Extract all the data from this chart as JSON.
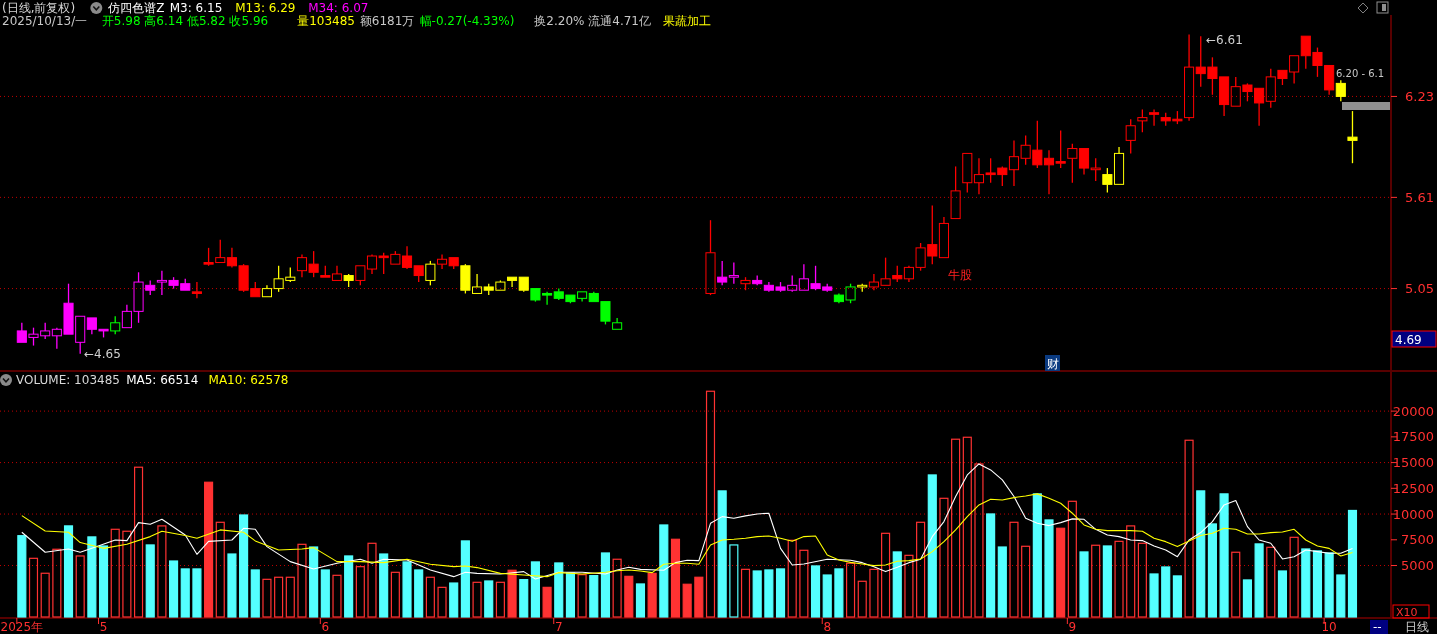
{
  "chart_data": [
    {
      "type": "candlestick",
      "title": "(日线,前复权)",
      "categories": [
        null,
        null,
        null,
        null,
        null,
        null,
        null,
        null,
        null,
        null,
        null,
        null,
        null,
        null,
        null,
        null,
        null,
        null,
        null,
        null,
        null,
        null,
        null,
        null,
        null,
        null,
        null,
        null,
        null,
        null,
        null,
        null,
        null,
        null,
        null,
        null,
        null,
        null,
        null,
        null,
        null,
        null,
        null,
        null,
        null,
        null,
        null,
        null,
        null,
        null,
        null,
        null,
        null,
        null,
        null,
        null,
        null,
        null,
        null,
        null,
        null,
        null,
        null,
        null,
        null,
        null,
        null,
        null,
        null,
        null,
        null,
        null,
        null,
        null,
        null,
        null,
        null,
        null,
        null,
        null,
        null,
        null,
        null,
        null,
        null,
        null,
        null,
        null,
        null,
        null,
        null,
        null,
        null,
        null,
        null,
        null,
        null,
        null,
        null,
        null,
        null,
        null,
        null,
        null,
        null,
        null,
        null,
        null,
        null,
        null,
        null,
        null,
        null,
        null,
        null
      ],
      "ohlc": [
        [
          4.79,
          4.84,
          4.72,
          4.72
        ],
        [
          4.75,
          4.81,
          4.7,
          4.77
        ],
        [
          4.76,
          4.84,
          4.74,
          4.79
        ],
        [
          4.76,
          4.81,
          4.68,
          4.8
        ],
        [
          4.96,
          5.08,
          4.77,
          4.77
        ],
        [
          4.72,
          4.88,
          4.65,
          4.88
        ],
        [
          4.87,
          4.87,
          4.77,
          4.8
        ],
        [
          4.8,
          4.8,
          4.75,
          4.79
        ],
        [
          4.79,
          4.88,
          4.77,
          4.84
        ],
        [
          4.81,
          4.95,
          4.81,
          4.91
        ],
        [
          4.91,
          5.15,
          4.84,
          5.09
        ],
        [
          5.07,
          5.1,
          5.01,
          5.04
        ],
        [
          5.09,
          5.16,
          5.01,
          5.1
        ],
        [
          5.1,
          5.12,
          5.05,
          5.07
        ],
        [
          5.08,
          5.11,
          5.04,
          5.04
        ],
        [
          5.03,
          5.09,
          4.99,
          5.02
        ],
        [
          5.21,
          5.3,
          5.19,
          5.2
        ],
        [
          5.21,
          5.35,
          5.21,
          5.24
        ],
        [
          5.24,
          5.3,
          5.18,
          5.19
        ],
        [
          5.19,
          5.2,
          5.03,
          5.04
        ],
        [
          5.05,
          5.09,
          5.0,
          5.0
        ],
        [
          5.0,
          5.07,
          5.0,
          5.05
        ],
        [
          5.05,
          5.19,
          5.03,
          5.11
        ],
        [
          5.1,
          5.18,
          5.09,
          5.12
        ],
        [
          5.16,
          5.26,
          5.12,
          5.24
        ],
        [
          5.2,
          5.28,
          5.12,
          5.15
        ],
        [
          5.13,
          5.19,
          5.12,
          5.12
        ],
        [
          5.1,
          5.19,
          5.1,
          5.14
        ],
        [
          5.13,
          5.14,
          5.06,
          5.1
        ],
        [
          5.1,
          5.19,
          5.07,
          5.19
        ],
        [
          5.17,
          5.26,
          5.14,
          5.25
        ],
        [
          5.25,
          5.27,
          5.14,
          5.24
        ],
        [
          5.2,
          5.28,
          5.2,
          5.26
        ],
        [
          5.25,
          5.31,
          5.17,
          5.18
        ],
        [
          5.19,
          5.19,
          5.09,
          5.13
        ],
        [
          5.1,
          5.22,
          5.07,
          5.2
        ],
        [
          5.2,
          5.26,
          5.17,
          5.23
        ],
        [
          5.24,
          5.24,
          5.17,
          5.19
        ],
        [
          5.19,
          5.2,
          5.02,
          5.04
        ],
        [
          5.02,
          5.14,
          5.02,
          5.06
        ],
        [
          5.06,
          5.08,
          5.01,
          5.04
        ],
        [
          5.04,
          5.1,
          5.04,
          5.09
        ],
        [
          5.12,
          5.12,
          5.06,
          5.1
        ],
        [
          5.12,
          5.12,
          5.03,
          5.04
        ],
        [
          5.05,
          5.05,
          4.97,
          4.98
        ],
        [
          5.02,
          5.03,
          4.95,
          5.01
        ],
        [
          5.03,
          5.05,
          4.98,
          4.99
        ],
        [
          5.01,
          5.01,
          4.96,
          4.97
        ],
        [
          4.99,
          5.03,
          4.97,
          5.03
        ],
        [
          5.02,
          5.03,
          4.97,
          4.97
        ],
        [
          4.97,
          4.97,
          4.83,
          4.85
        ],
        [
          4.8,
          4.87,
          4.8,
          4.84
        ],
        null,
        null,
        null,
        null,
        null,
        null,
        null,
        [
          5.02,
          5.47,
          5.01,
          5.27
        ],
        [
          5.12,
          5.22,
          5.07,
          5.09
        ],
        [
          5.12,
          5.21,
          5.08,
          5.13
        ],
        [
          5.08,
          5.12,
          5.04,
          5.1
        ],
        [
          5.1,
          5.13,
          5.07,
          5.08
        ],
        [
          5.07,
          5.09,
          5.03,
          5.04
        ],
        [
          5.06,
          5.09,
          5.03,
          5.04
        ],
        [
          5.04,
          5.13,
          5.03,
          5.07
        ],
        [
          5.04,
          5.2,
          5.04,
          5.11
        ],
        [
          5.08,
          5.19,
          5.04,
          5.05
        ],
        [
          5.06,
          5.08,
          5.03,
          5.04
        ],
        [
          5.01,
          5.02,
          4.96,
          4.97
        ],
        [
          4.98,
          5.08,
          4.96,
          5.06
        ],
        [
          5.06,
          5.08,
          5.03,
          5.07
        ],
        [
          5.06,
          5.14,
          5.04,
          5.09
        ],
        [
          5.07,
          5.24,
          5.07,
          5.11
        ],
        [
          5.13,
          5.19,
          5.09,
          5.11
        ],
        [
          5.11,
          5.19,
          5.09,
          5.18
        ],
        [
          5.18,
          5.33,
          5.16,
          5.3
        ],
        [
          5.32,
          5.56,
          5.2,
          5.25
        ],
        [
          5.24,
          5.49,
          5.24,
          5.45
        ],
        [
          5.48,
          5.8,
          5.48,
          5.65
        ],
        [
          5.7,
          5.88,
          5.64,
          5.88
        ],
        [
          5.7,
          5.85,
          5.63,
          5.75
        ],
        [
          5.76,
          5.85,
          5.7,
          5.75
        ],
        [
          5.79,
          5.8,
          5.68,
          5.75
        ],
        [
          5.78,
          5.96,
          5.68,
          5.86
        ],
        [
          5.85,
          5.99,
          5.81,
          5.93
        ],
        [
          5.9,
          6.08,
          5.79,
          5.81
        ],
        [
          5.85,
          5.9,
          5.63,
          5.81
        ],
        [
          5.83,
          6.02,
          5.79,
          5.82
        ],
        [
          5.85,
          5.94,
          5.7,
          5.91
        ],
        [
          5.91,
          5.91,
          5.75,
          5.79
        ],
        [
          5.78,
          5.85,
          5.71,
          5.79
        ],
        [
          5.75,
          5.79,
          5.64,
          5.69
        ],
        [
          5.69,
          5.92,
          5.69,
          5.88
        ],
        [
          5.96,
          6.09,
          5.88,
          6.05
        ],
        [
          6.08,
          6.15,
          6.01,
          6.1
        ],
        [
          6.13,
          6.15,
          6.05,
          6.12
        ],
        [
          6.1,
          6.13,
          6.05,
          6.08
        ],
        [
          6.09,
          6.14,
          6.06,
          6.08
        ],
        [
          6.1,
          6.61,
          6.08,
          6.41
        ],
        [
          6.41,
          6.6,
          6.29,
          6.37
        ],
        [
          6.41,
          6.47,
          6.24,
          6.34
        ],
        [
          6.35,
          6.35,
          6.11,
          6.18
        ],
        [
          6.17,
          6.35,
          6.17,
          6.29
        ],
        [
          6.3,
          6.31,
          6.2,
          6.26
        ],
        [
          6.28,
          6.28,
          6.05,
          6.19
        ],
        [
          6.2,
          6.4,
          6.16,
          6.35
        ],
        [
          6.39,
          6.39,
          6.3,
          6.34
        ],
        [
          6.38,
          6.48,
          6.31,
          6.48
        ],
        [
          6.6,
          6.6,
          6.4,
          6.48
        ],
        [
          6.5,
          6.53,
          6.35,
          6.42
        ],
        [
          6.42,
          6.42,
          6.24,
          6.27
        ],
        [
          6.31,
          6.33,
          6.2,
          6.23
        ],
        [
          5.98,
          6.14,
          5.82,
          5.96
        ]
      ],
      "colors": [
        "#ff00ff",
        "#ff00ff",
        "#ff00ff",
        "#ff00ff",
        "#ff00ff",
        "#ff00ff",
        "#ff00ff",
        "#ff00ff",
        "#00ff00",
        "#ff00ff",
        "#ff00ff",
        "#ff00ff",
        "#ff00ff",
        "#ff00ff",
        "#ff00ff",
        "#ff0000",
        "#ff0000",
        "#ff0000",
        "#ff0000",
        "#ff0000",
        "#ff0000",
        "#ffff00",
        "#ffff00",
        "#ffff00",
        "#ff0000",
        "#ff0000",
        "#ff0000",
        "#ff0000",
        "#ffff00",
        "#ff0000",
        "#ff0000",
        "#ff0000",
        "#ff0000",
        "#ff0000",
        "#ff0000",
        "#ffff00",
        "#ff0000",
        "#ff0000",
        "#ffff00",
        "#ffff00",
        "#ffff00",
        "#ffff00",
        "#ffff00",
        "#ffff00",
        "#00ff00",
        "#00ff00",
        "#00ff00",
        "#00ff00",
        "#00ff00",
        "#00ff00",
        "#00ff00",
        "#00ff00",
        null,
        null,
        null,
        null,
        null,
        null,
        null,
        "#ff0000",
        "#ff00ff",
        "#ff00ff",
        "#ff0000",
        "#ff00ff",
        "#ff00ff",
        "#ff00ff",
        "#ff00ff",
        "#ff00ff",
        "#ff00ff",
        "#ff00ff",
        "#00ff00",
        "#00ff00",
        "#ffff00",
        "#ff0000",
        "#ff0000",
        "#ff0000",
        "#ff0000",
        "#ff0000",
        "#ff0000",
        "#ff0000",
        "#ff0000",
        "#ff0000",
        "#ff0000",
        "#ff0000",
        "#ff0000",
        "#ff0000",
        "#ff0000",
        "#ff0000",
        "#ff0000",
        "#ff0000",
        "#ff0000",
        "#ff0000",
        "#ff0000",
        "#ffff00",
        "#ffff00",
        "#ff0000",
        "#ff0000",
        "#ff0000",
        "#ff0000",
        "#ff0000",
        "#ff0000",
        "#ff0000",
        "#ff0000",
        "#ff0000",
        "#ff0000",
        "#ff0000",
        "#ff0000",
        "#ff0000",
        "#ff0000",
        "#ff0000",
        "#ff0000",
        "#ff0000",
        "#ff0000",
        "#ffff00",
        "#ffff00"
      ],
      "ylim": [
        4.55,
        6.73
      ],
      "yticks": [
        5.05,
        5.61,
        6.23
      ],
      "grid": "y",
      "tick_labels": "y",
      "annotations": [
        "仿四色谱Z",
        "M3: 6.15",
        "M13: 6.29",
        "M34: 6.07",
        "2025/10/13/一",
        "开5.98 高6.14 低5.82 收5.96",
        "量103485",
        "额6181万",
        "幅-0.27(-4.33%)",
        "换2.20% 流通4.71亿",
        "果蔬加工",
        "牛股",
        "财",
        "4.69",
        "6.20 - 6.1",
        "←4.65",
        "←6.61"
      ]
    },
    {
      "type": "bar",
      "title": "VOLUME: 103485",
      "categories": [
        "2025年",
        null,
        null,
        null,
        null,
        null,
        null,
        "5",
        null,
        null,
        null,
        null,
        null,
        null,
        null,
        null,
        null,
        null,
        null,
        null,
        null,
        null,
        null,
        null,
        null,
        null,
        "6",
        null,
        null,
        null,
        null,
        null,
        null,
        null,
        null,
        null,
        null,
        null,
        null,
        null,
        null,
        null,
        null,
        null,
        null,
        null,
        "7",
        null,
        null,
        null,
        null,
        null,
        null,
        null,
        null,
        null,
        null,
        null,
        null,
        null,
        null,
        null,
        null,
        null,
        null,
        null,
        null,
        null,
        null,
        "8",
        null,
        null,
        null,
        null,
        null,
        null,
        null,
        null,
        null,
        null,
        null,
        null,
        null,
        null,
        null,
        null,
        null,
        null,
        null,
        null,
        "9",
        null,
        null,
        null,
        null,
        null,
        null,
        null,
        null,
        null,
        null,
        null,
        null,
        null,
        null,
        null,
        null,
        null,
        null,
        null,
        null,
        null,
        "10",
        null,
        null
      ],
      "series": [
        {
          "type": "bar",
          "values": [
            7900,
            5700,
            4250,
            6580,
            8850,
            5930,
            7780,
            6900,
            8520,
            8330,
            14550,
            7000,
            8850,
            5440,
            4670,
            4670,
            13090,
            9200,
            6120,
            9910,
            4570,
            3660,
            3860,
            3860,
            7060,
            6800,
            4570,
            4050,
            5930,
            4890,
            7160,
            6120,
            4340,
            5350,
            4570,
            3860,
            2880,
            3300,
            7390,
            3370,
            3500,
            3370,
            4540,
            3630,
            5350,
            2880,
            5250,
            4280,
            4110,
            4020,
            6220,
            5610,
            3950,
            3210,
            4240,
            8940,
            7550,
            3180,
            3860,
            21930,
            12250,
            7000,
            4630,
            4470,
            4570,
            4670,
            7450,
            6480,
            4960,
            4080,
            4670,
            5220,
            3470,
            4630,
            8130,
            6320,
            5990,
            9200,
            13800,
            11530,
            17270,
            17460,
            14870,
            10010,
            6800,
            9200,
            6870,
            11960,
            9430,
            8620,
            11240,
            6320,
            6970,
            6900,
            7350,
            8850,
            7160,
            4180,
            4860,
            3990,
            17170,
            12250,
            9040,
            11960,
            6290,
            3600,
            7100,
            6770,
            4470,
            7740,
            6610,
            6420,
            6220,
            4080,
            10350
          ],
          "colors": [
            "#54ffff",
            "#ff3232",
            "#ff3232",
            "#ff3232",
            "#54ffff",
            "#ff3232",
            "#54ffff",
            "#54ffff",
            "#ff3232",
            "#ff3232",
            "#ff3232",
            "#54ffff",
            "#ff3232",
            "#54ffff",
            "#54ffff",
            "#54ffff",
            "#ff3232",
            "#ff3232",
            "#54ffff",
            "#54ffff",
            "#54ffff",
            "#ff3232",
            "#ff3232",
            "#ff3232",
            "#ff3232",
            "#54ffff",
            "#54ffff",
            "#ff3232",
            "#54ffff",
            "#ff3232",
            "#ff3232",
            "#54ffff",
            "#ff3232",
            "#54ffff",
            "#54ffff",
            "#ff3232",
            "#ff3232",
            "#54ffff",
            "#54ffff",
            "#ff3232",
            "#54ffff",
            "#ff3232",
            "#ff3232",
            "#54ffff",
            "#54ffff",
            "#ff3232",
            "#54ffff",
            "#54ffff",
            "#ff3232",
            "#54ffff",
            "#54ffff",
            "#ff3232",
            "#ff3232",
            "#54ffff",
            "#ff3232",
            "#54ffff",
            "#ff3232",
            "#ff3232",
            "#ff3232",
            "#ff3232",
            "#54ffff",
            "#54ffff",
            "#ff3232",
            "#54ffff",
            "#54ffff",
            "#54ffff",
            "#ff3232",
            "#ff3232",
            "#54ffff",
            "#54ffff",
            "#54ffff",
            "#ff3232",
            "#ff3232",
            "#ff3232",
            "#ff3232",
            "#54ffff",
            "#ff3232",
            "#ff3232",
            "#54ffff",
            "#ff3232",
            "#ff3232",
            "#ff3232",
            "#ff3232",
            "#54ffff",
            "#54ffff",
            "#ff3232",
            "#ff3232",
            "#54ffff",
            "#54ffff",
            "#ff3232",
            "#ff3232",
            "#54ffff",
            "#ff3232",
            "#54ffff",
            "#ff3232",
            "#ff3232",
            "#ff3232",
            "#54ffff",
            "#54ffff",
            "#54ffff",
            "#ff3232",
            "#54ffff",
            "#54ffff",
            "#54ffff",
            "#ff3232",
            "#54ffff",
            "#54ffff",
            "#ff3232",
            "#54ffff",
            "#ff3232",
            "#54ffff",
            "#54ffff",
            "#54ffff",
            "#54ffff",
            "#54ffff"
          ]
        },
        {
          "type": "line",
          "name": "MA5: 66514",
          "color": "#ffffff",
          "values": [
            8230,
            null,
            6290,
            null,
            6610,
            6290,
            6670,
            null,
            7480,
            7420,
            9170,
            9010,
            9490,
            null,
            7970,
            6090,
            7350,
            null,
            7480,
            8620,
            8520,
            6840,
            null,
            5380,
            null,
            4670,
            null,
            5220,
            null,
            5610,
            5220,
            5610,
            null,
            5540,
            null,
            4570,
            null,
            3920,
            4340,
            4240,
            null,
            4180,
            null,
            4410,
            3690,
            null,
            4340,
            null,
            4340,
            null,
            4180,
            4570,
            4830,
            4630,
            null,
            4540,
            5280,
            5510,
            5480,
            9100,
            9750,
            9590,
            9820,
            10010,
            10080,
            6670,
            5050,
            5150,
            null,
            5610,
            null,
            5510,
            5280,
            4890,
            4410,
            4830,
            5280,
            5610,
            7800,
            9270,
            11700,
            13800,
            14870,
            14290,
            13320,
            11700,
            9590,
            9100,
            8880,
            9170,
            9530,
            9490,
            8520,
            7970,
            7810,
            7480,
            7420,
            6900,
            6510,
            5860,
            7480,
            8200,
            9270,
            10890,
            11310,
            8780,
            7480,
            7160,
            5640,
            5860,
            6510,
            6350,
            6190,
            6190,
            6650
          ]
        },
        {
          "type": "line",
          "name": "MA10: 62578",
          "color": "#ffff00",
          "values": [
            9850,
            null,
            8360,
            null,
            8230,
            7230,
            null,
            6670,
            null,
            7060,
            null,
            7810,
            8330,
            null,
            7910,
            7650,
            null,
            8460,
            null,
            8230,
            7390,
            null,
            6510,
            null,
            6610,
            6740,
            null,
            5380,
            null,
            5380,
            null,
            5280,
            null,
            5610,
            null,
            5120,
            null,
            4890,
            4960,
            4800,
            null,
            4240,
            null,
            4080,
            null,
            3920,
            4310,
            null,
            4180,
            null,
            4340,
            4500,
            4570,
            4470,
            4310,
            5120,
            5220,
            5220,
            5120,
            7000,
            7480,
            7550,
            7650,
            7810,
            7870,
            7650,
            7350,
            7810,
            7870,
            6030,
            5540,
            5310,
            5150,
            4990,
            5050,
            5410,
            5480,
            5640,
            6350,
            7320,
            8460,
            9750,
            10890,
            11440,
            11370,
            11600,
            11760,
            11960,
            11530,
            11050,
            10080,
            8940,
            8520,
            8390,
            8390,
            8390,
            8330,
            7650,
            7320,
            6840,
            7390,
            7910,
            8130,
            8620,
            8520,
            8070,
            8070,
            8200,
            8260,
            8520,
            7480,
            6900,
            6670,
            5930,
            6260
          ]
        }
      ],
      "ylim": [
        0,
        23800
      ],
      "yticks": [
        5000,
        7500,
        10000,
        12500,
        15000,
        17500,
        20000
      ],
      "ref_lines": [
        {
          "axis": "y",
          "value": 5000,
          "color": "#c00000",
          "line_style": "dotted"
        },
        {
          "axis": "y",
          "value": 10000,
          "color": "#c00000",
          "line_style": "dotted"
        },
        {
          "axis": "y",
          "value": 15000,
          "color": "#c00000",
          "line_style": "dotted"
        },
        {
          "axis": "y",
          "value": 20000,
          "color": "#c00000",
          "line_style": "dotted"
        }
      ],
      "legend": "top left",
      "annotations": [
        "X10",
        "日线",
        "--"
      ]
    }
  ]
}
